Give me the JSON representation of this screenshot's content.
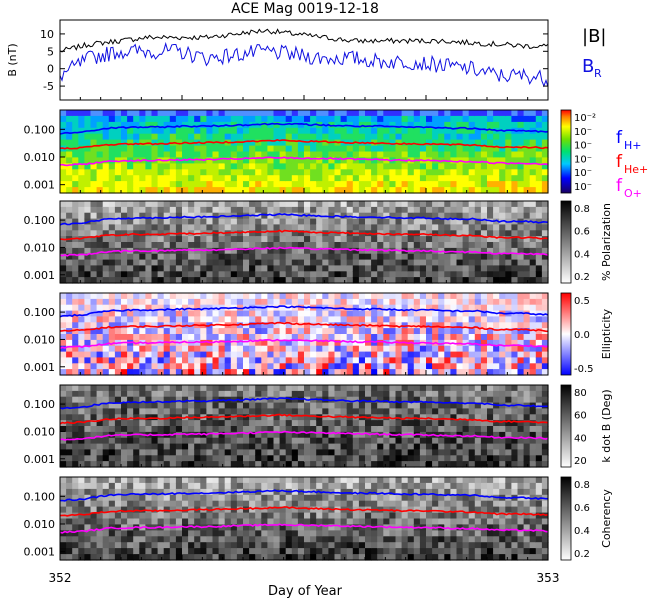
{
  "title": "ACE Mag 0019-12-18",
  "xlabel": "Day of Year",
  "x_ticks": [
    "352",
    "353"
  ],
  "colors": {
    "B": "#000000",
    "BR": "#1010e0",
    "H": "#0000ff",
    "He": "#ff0000",
    "O": "#ff00ff"
  },
  "legend": {
    "B_total": "|B|",
    "B_R": "B",
    "B_R_sub": "R",
    "fH": "f",
    "fH_sub": "H+",
    "fHe": "f",
    "fHe_sub": "He+",
    "fO": "f",
    "fO_sub": "O+"
  },
  "chart_data": [
    {
      "type": "line",
      "ylabel": "B (nT)",
      "ylim": [
        -9,
        14
      ],
      "yticks": [
        "10",
        "5",
        "0",
        "-5"
      ],
      "series": [
        {
          "name": "|B|",
          "x": [
            352.0,
            352.06,
            352.12,
            352.18,
            352.24,
            352.3,
            352.36,
            352.42,
            352.48,
            352.54,
            352.6,
            352.66,
            352.72,
            352.78,
            352.84,
            352.9,
            352.96,
            353.0
          ],
          "values": [
            5,
            7,
            8,
            9,
            9,
            9,
            10,
            11,
            10,
            9,
            8,
            8,
            8,
            8,
            7.5,
            7,
            6.5,
            6.5
          ]
        },
        {
          "name": "B_R",
          "x": [
            352.0,
            352.06,
            352.12,
            352.18,
            352.24,
            352.3,
            352.36,
            352.42,
            352.48,
            352.54,
            352.6,
            352.66,
            352.72,
            352.78,
            352.84,
            352.9,
            352.96,
            353.0
          ],
          "values": [
            -2,
            3,
            5,
            5,
            5,
            3,
            4,
            5,
            4,
            3,
            3,
            2,
            2,
            1,
            0,
            -2,
            -2,
            -3
          ]
        }
      ]
    },
    {
      "type": "heatmap",
      "ylabel": "",
      "ylim": [
        0.0005,
        0.5
      ],
      "yscale": "log",
      "yticks": [
        "0.100",
        "0.010",
        "0.001"
      ],
      "colorbar_label": "",
      "colorbar_ticks": [
        "10⁻²",
        "10⁻",
        "10⁻",
        "10⁻",
        "10⁻",
        "10⁻"
      ],
      "colormap": "rainbow"
    },
    {
      "type": "heatmap",
      "ylabel": "",
      "ylim": [
        0.0005,
        0.5
      ],
      "yscale": "log",
      "yticks": [
        "0.100",
        "0.010",
        "0.001"
      ],
      "colorbar_label": "% Polarization",
      "colorbar_ticks": [
        "0.8",
        "0.6",
        "0.4",
        "0.2"
      ],
      "colormap": "gray"
    },
    {
      "type": "heatmap",
      "ylabel": "",
      "ylim": [
        0.0005,
        0.5
      ],
      "yscale": "log",
      "yticks": [
        "0.100",
        "0.010",
        "0.001"
      ],
      "colorbar_label": "Ellipticity",
      "colorbar_ticks": [
        "0.5",
        "0.0",
        "-0.5"
      ],
      "colormap": "bwr"
    },
    {
      "type": "heatmap",
      "ylabel": "",
      "ylim": [
        0.0005,
        0.5
      ],
      "yscale": "log",
      "yticks": [
        "0.100",
        "0.010",
        "0.001"
      ],
      "colorbar_label": "k dot B (Deg)",
      "colorbar_ticks": [
        "80",
        "60",
        "40",
        "20"
      ],
      "colormap": "gray"
    },
    {
      "type": "heatmap",
      "ylabel": "",
      "ylim": [
        0.0005,
        0.5
      ],
      "yscale": "log",
      "yticks": [
        "0.100",
        "0.010",
        "0.001"
      ],
      "colorbar_label": "Coherency",
      "colorbar_ticks": [
        "0.8",
        "0.6",
        "0.4",
        "0.2"
      ],
      "colormap": "gray"
    }
  ],
  "gyro_lines": {
    "x": [
      352.0,
      352.05,
      352.1,
      352.15,
      352.2,
      352.25,
      352.3,
      352.35,
      352.4,
      352.45,
      352.5,
      352.55,
      352.6,
      352.65,
      352.7,
      352.75,
      352.8,
      352.85,
      352.9,
      352.95,
      353.0
    ],
    "fH": [
      0.07,
      0.08,
      0.11,
      0.12,
      0.12,
      0.13,
      0.13,
      0.14,
      0.15,
      0.16,
      0.15,
      0.14,
      0.13,
      0.13,
      0.12,
      0.12,
      0.11,
      0.11,
      0.09,
      0.09,
      0.08
    ],
    "fHe": [
      0.02,
      0.022,
      0.028,
      0.03,
      0.03,
      0.032,
      0.033,
      0.035,
      0.037,
      0.04,
      0.037,
      0.035,
      0.033,
      0.032,
      0.03,
      0.03,
      0.028,
      0.027,
      0.023,
      0.023,
      0.021
    ],
    "fO": [
      0.005,
      0.0055,
      0.007,
      0.0075,
      0.0075,
      0.008,
      0.008,
      0.0085,
      0.009,
      0.0095,
      0.009,
      0.0088,
      0.0083,
      0.008,
      0.0076,
      0.0075,
      0.007,
      0.0068,
      0.006,
      0.006,
      0.0055
    ]
  }
}
